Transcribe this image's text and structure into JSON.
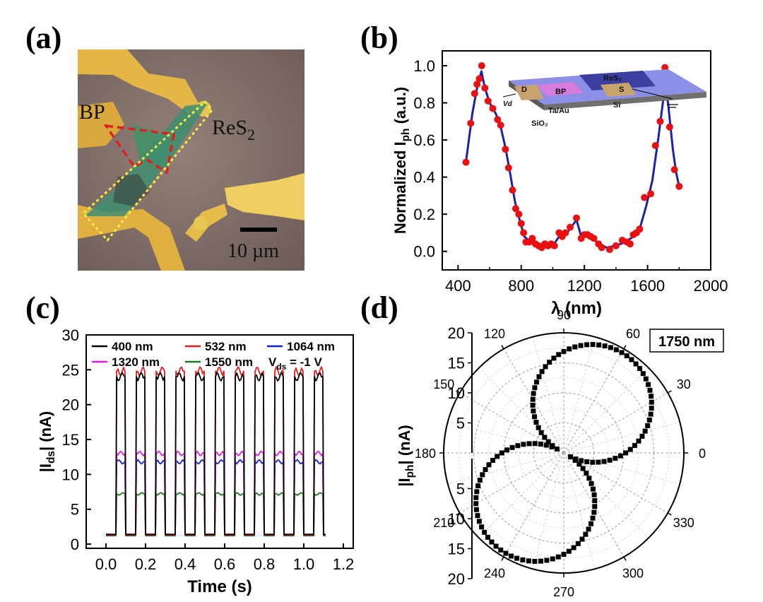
{
  "panels": {
    "a": {
      "letter": "(a)"
    },
    "b": {
      "letter": "(b)"
    },
    "c": {
      "letter": "(c)"
    },
    "d": {
      "letter": "(d)"
    }
  },
  "micrograph": {
    "label_bp": "BP",
    "label_res2_base": "ReS",
    "label_res2_sub": "2",
    "scale_bar_label": "10 µm",
    "colors": {
      "background": "#8a7470",
      "electrode": "#e0b13f",
      "flake_green": "#4f9a73",
      "bp_outline": "#e02020",
      "res2_outline": "#f0f040"
    }
  },
  "chart_data": [
    {
      "id": "b",
      "type": "line+scatter",
      "xlabel": "λ (nm)",
      "ylabel_main": "Normalized I",
      "ylabel_sub": "ph",
      "ylabel_tail": " (a.u.)",
      "xlim": [
        300,
        2000
      ],
      "ylim": [
        -0.1,
        1.08
      ],
      "xticks": [
        400,
        800,
        1200,
        1600,
        2000
      ],
      "yticks": [
        0.0,
        0.2,
        0.4,
        0.6,
        0.8,
        1.0
      ],
      "ytick_labels": [
        "0.0",
        "0.2",
        "0.4",
        "0.6",
        "0.8",
        "1.0"
      ],
      "scatter_color": "#e81010",
      "line_color": "#1a23a8",
      "points": [
        [
          450,
          0.48
        ],
        [
          480,
          0.69
        ],
        [
          505,
          0.85
        ],
        [
          520,
          0.9
        ],
        [
          535,
          0.93
        ],
        [
          550,
          1.0
        ],
        [
          570,
          0.88
        ],
        [
          590,
          0.81
        ],
        [
          620,
          0.77
        ],
        [
          650,
          0.71
        ],
        [
          670,
          0.68
        ],
        [
          700,
          0.55
        ],
        [
          720,
          0.45
        ],
        [
          745,
          0.33
        ],
        [
          765,
          0.23
        ],
        [
          785,
          0.2
        ],
        [
          800,
          0.15
        ],
        [
          815,
          0.1
        ],
        [
          830,
          0.05
        ],
        [
          850,
          0.05
        ],
        [
          870,
          0.07
        ],
        [
          890,
          0.04
        ],
        [
          910,
          0.03
        ],
        [
          930,
          0.02
        ],
        [
          950,
          0.04
        ],
        [
          970,
          0.03
        ],
        [
          990,
          0.04
        ],
        [
          1010,
          0.03
        ],
        [
          1040,
          0.1
        ],
        [
          1060,
          0.08
        ],
        [
          1080,
          0.1
        ],
        [
          1110,
          0.13
        ],
        [
          1150,
          0.18
        ],
        [
          1180,
          0.07
        ],
        [
          1200,
          0.09
        ],
        [
          1220,
          0.09
        ],
        [
          1240,
          0.08
        ],
        [
          1260,
          0.07
        ],
        [
          1290,
          0.04
        ],
        [
          1310,
          0.02
        ],
        [
          1360,
          0.01
        ],
        [
          1400,
          0.03
        ],
        [
          1440,
          0.06
        ],
        [
          1470,
          0.05
        ],
        [
          1490,
          0.04
        ],
        [
          1510,
          0.09
        ],
        [
          1530,
          0.1
        ],
        [
          1550,
          0.12
        ],
        [
          1580,
          0.29
        ],
        [
          1620,
          0.31
        ],
        [
          1650,
          0.57
        ],
        [
          1680,
          0.7
        ],
        [
          1710,
          0.99
        ],
        [
          1740,
          0.67
        ],
        [
          1770,
          0.44
        ],
        [
          1800,
          0.35
        ]
      ],
      "curve": [
        [
          450,
          0.48
        ],
        [
          490,
          0.74
        ],
        [
          520,
          0.88
        ],
        [
          548,
          0.97
        ],
        [
          570,
          0.88
        ],
        [
          600,
          0.8
        ],
        [
          640,
          0.74
        ],
        [
          670,
          0.67
        ],
        [
          700,
          0.56
        ],
        [
          730,
          0.42
        ],
        [
          760,
          0.27
        ],
        [
          790,
          0.17
        ],
        [
          820,
          0.08
        ],
        [
          860,
          0.05
        ],
        [
          900,
          0.04
        ],
        [
          950,
          0.04
        ],
        [
          1000,
          0.03
        ],
        [
          1040,
          0.08
        ],
        [
          1100,
          0.11
        ],
        [
          1150,
          0.17
        ],
        [
          1180,
          0.08
        ],
        [
          1230,
          0.08
        ],
        [
          1280,
          0.05
        ],
        [
          1340,
          0.02
        ],
        [
          1400,
          0.03
        ],
        [
          1460,
          0.05
        ],
        [
          1510,
          0.08
        ],
        [
          1550,
          0.12
        ],
        [
          1590,
          0.24
        ],
        [
          1630,
          0.38
        ],
        [
          1670,
          0.62
        ],
        [
          1700,
          0.82
        ],
        [
          1715,
          0.86
        ],
        [
          1730,
          0.8
        ],
        [
          1760,
          0.55
        ],
        [
          1780,
          0.43
        ],
        [
          1800,
          0.35
        ]
      ],
      "inset": {
        "label_d": "D",
        "label_s": "S",
        "label_bp": "BP",
        "label_res2": "ReS₂",
        "label_taau": "Ta/Au",
        "label_sio2": "SiO₂",
        "label_si": "Si",
        "label_vd": "Vd"
      }
    },
    {
      "id": "c",
      "type": "line",
      "xlabel": "Time (s)",
      "ylabel_main": "|I",
      "ylabel_sub": "ds",
      "ylabel_tail": "| (nA)",
      "xlim": [
        -0.1,
        1.25
      ],
      "ylim": [
        -0.6,
        30
      ],
      "xticks": [
        0.0,
        0.2,
        0.4,
        0.6,
        0.8,
        1.0,
        1.2
      ],
      "xtick_labels": [
        "0.0",
        "0.2",
        "0.4",
        "0.6",
        "0.8",
        "1.0",
        "1.2"
      ],
      "yticks": [
        0,
        5,
        10,
        15,
        20,
        25,
        30
      ],
      "pulse_starts": [
        0.05,
        0.15,
        0.25,
        0.35,
        0.45,
        0.55,
        0.65,
        0.75,
        0.85,
        0.95,
        1.05
      ],
      "pulse_width": 0.05,
      "time_range": [
        0.0,
        1.11
      ],
      "annotation": "V",
      "annotation_sub": "ds",
      "annotation_tail": " = -1 V",
      "series": [
        {
          "name": "400 nm",
          "color": "#000000",
          "off": 1.4,
          "on": 24.0
        },
        {
          "name": "532 nm",
          "color": "#e02020",
          "off": 1.3,
          "on": 24.8
        },
        {
          "name": "1064 nm",
          "color": "#1020e0",
          "off": 1.3,
          "on": 11.8
        },
        {
          "name": "1320 nm",
          "color": "#e020e0",
          "off": 1.4,
          "on": 13.0
        },
        {
          "name": "1550 nm",
          "color": "#1a7a1a",
          "off": 1.2,
          "on": 7.2
        }
      ]
    },
    {
      "id": "d",
      "type": "polar-scatter",
      "ylabel_main": "|I",
      "ylabel_sub": "ph",
      "ylabel_tail": "| (nA)",
      "rlim": [
        0,
        20
      ],
      "rticks": [
        5,
        10,
        15,
        20
      ],
      "angle_labels": [
        "0",
        "30",
        "60",
        "90",
        "120",
        "150",
        "180",
        "210",
        "240",
        "270",
        "300",
        "330"
      ],
      "wavelength_label": "1750 nm",
      "marker_color": "#000000",
      "amplitude": 18.0,
      "offset": 1.3,
      "max_angle": 60,
      "angle_step": 3.0
    }
  ]
}
